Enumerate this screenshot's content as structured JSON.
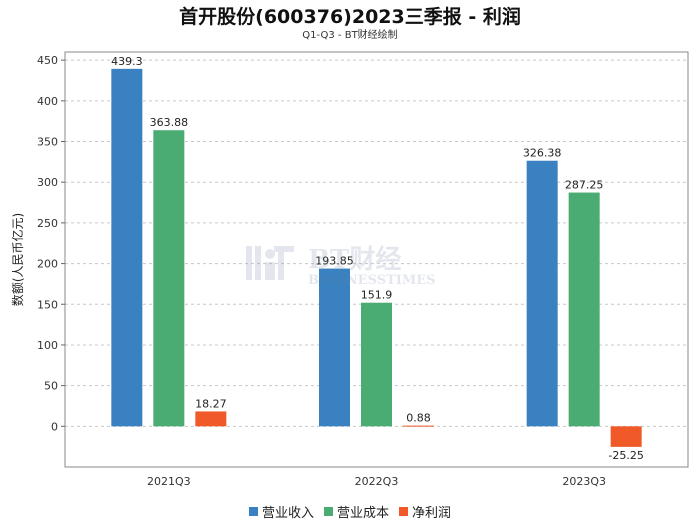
{
  "chart_data": {
    "type": "bar",
    "title": "首开股份(600376)2023三季报 - 利润",
    "subtitle": "Q1-Q3 - BT财经绘制",
    "ylabel": "数额(人民币亿元)",
    "xlabel": "",
    "categories": [
      "2021Q3",
      "2022Q3",
      "2023Q3"
    ],
    "ylim": [
      -50,
      460
    ],
    "yticks": [
      0,
      50,
      100,
      150,
      200,
      250,
      300,
      350,
      400,
      450
    ],
    "grid": true,
    "legend_position": "bottom",
    "series": [
      {
        "name": "营业收入",
        "color": "#3a81c1",
        "values": [
          439.3,
          193.85,
          326.38
        ],
        "labels": [
          "439.3",
          "193.85",
          "326.38"
        ]
      },
      {
        "name": "营业成本",
        "color": "#4aab73",
        "values": [
          363.88,
          151.9,
          287.25
        ],
        "labels": [
          "363.88",
          "151.9",
          "287.25"
        ]
      },
      {
        "name": "净利润",
        "color": "#ef5a28",
        "values": [
          18.27,
          0.88,
          -25.25
        ],
        "labels": [
          "18.27",
          "0.88",
          "-25.25"
        ]
      }
    ]
  },
  "watermark": {
    "brand": "BT财经",
    "sub": "BUSINESSTIMES"
  }
}
